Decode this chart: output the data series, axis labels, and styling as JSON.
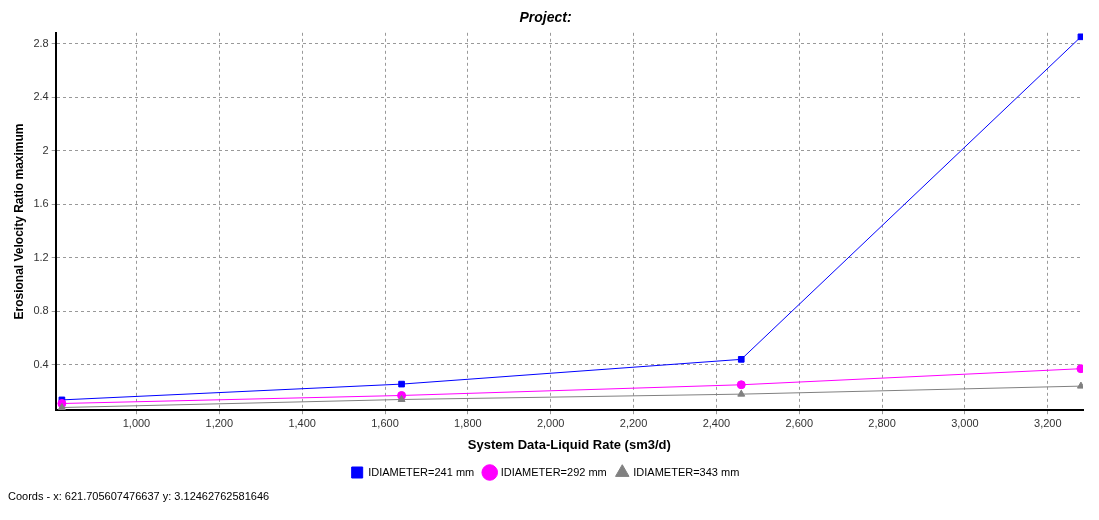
{
  "chart_data": {
    "type": "line",
    "title": "Project:",
    "xlabel": "System Data-Liquid Rate (sm3/d)",
    "ylabel": "Erosional Velocity Ratio maximum",
    "x": [
      820,
      1640,
      2460,
      3280
    ],
    "series": [
      {
        "name": "IDIAMETER=241 mm",
        "color": "#0000ff",
        "marker": "square",
        "values": [
          0.137,
          0.255,
          0.44,
          2.85
        ]
      },
      {
        "name": "IDIAMETER=292 mm",
        "color": "#ff00ff",
        "marker": "circle",
        "values": [
          0.11,
          0.17,
          0.25,
          0.37
        ]
      },
      {
        "name": "IDIAMETER=343 mm",
        "color": "#808080",
        "marker": "triangle",
        "values": [
          0.08,
          0.14,
          0.18,
          0.24
        ]
      }
    ],
    "xlim": [
      805,
      3285
    ],
    "ylim": [
      0.06,
      2.88
    ],
    "xticks": [
      {
        "value": 1000,
        "label": "1,000"
      },
      {
        "value": 1200,
        "label": "1,200"
      },
      {
        "value": 1400,
        "label": "1,400"
      },
      {
        "value": 1600,
        "label": "1,600"
      },
      {
        "value": 1800,
        "label": "1,800"
      },
      {
        "value": 2000,
        "label": "2,000"
      },
      {
        "value": 2200,
        "label": "2,200"
      },
      {
        "value": 2400,
        "label": "2,400"
      },
      {
        "value": 2600,
        "label": "2,600"
      },
      {
        "value": 2800,
        "label": "2,800"
      },
      {
        "value": 3000,
        "label": "3,000"
      },
      {
        "value": 3200,
        "label": "3,200"
      }
    ],
    "yticks": [
      0.4,
      0.8,
      1.2,
      1.6,
      2,
      2.4,
      2.8
    ],
    "grid": true,
    "legend": "bottom",
    "line_style": "solid",
    "annotations": [
      "Coords -  x: 621.705607476637  y: 3.12462762581646"
    ]
  }
}
